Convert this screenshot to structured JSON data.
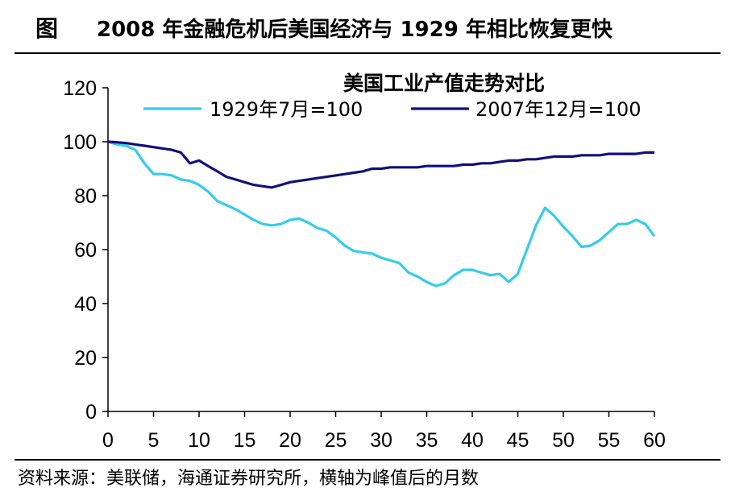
{
  "header": {
    "figure_label": "图",
    "title": "2008 年金融危机后美国经济与 1929 年相比恢复更快"
  },
  "source": "资料来源：美联储，海通证券研究所，横轴为峰值后的月数",
  "colors": {
    "series_1929": "#33ccee",
    "series_2007": "#10107a",
    "axis": "#000000"
  },
  "chart_data": {
    "type": "line",
    "title": "美国工业产值走势对比",
    "xlabel": "",
    "ylabel": "",
    "xlim": [
      0,
      60
    ],
    "ylim": [
      0,
      120
    ],
    "xticks": [
      0,
      5,
      10,
      15,
      20,
      25,
      30,
      35,
      40,
      45,
      50,
      55,
      60
    ],
    "yticks": [
      0,
      20,
      40,
      60,
      80,
      100,
      120
    ],
    "legend_position": "top",
    "grid": false,
    "series": [
      {
        "name": "1929年7月=100",
        "color": "#33ccee",
        "x": [
          0,
          1,
          2,
          3,
          4,
          5,
          6,
          7,
          8,
          9,
          10,
          11,
          12,
          13,
          14,
          15,
          16,
          17,
          18,
          19,
          20,
          21,
          22,
          23,
          24,
          25,
          26,
          27,
          28,
          29,
          30,
          31,
          32,
          33,
          34,
          35,
          36,
          37,
          38,
          39,
          40,
          41,
          42,
          43,
          44,
          45,
          46,
          47,
          48,
          49,
          50,
          51,
          52,
          53,
          54,
          55,
          56,
          57,
          58,
          59,
          60
        ],
        "values": [
          100,
          99,
          98.5,
          97,
          92,
          88,
          88,
          87.5,
          86,
          85.5,
          84,
          81.5,
          78,
          76.5,
          75,
          73,
          71,
          69.5,
          69,
          69.5,
          71,
          71.5,
          70,
          68,
          67,
          64.5,
          61.5,
          59.5,
          59,
          58.5,
          57,
          56,
          55,
          51.5,
          50,
          48,
          46.5,
          47.5,
          50.5,
          52.5,
          52.5,
          51.5,
          50.5,
          51,
          48,
          51,
          60,
          69,
          75.5,
          72.5,
          68.5,
          65,
          61,
          61.5,
          63.5,
          66.5,
          69.5,
          69.5,
          71,
          69.5,
          65
        ]
      },
      {
        "name": "2007年12月=100",
        "color": "#10107a",
        "x": [
          0,
          1,
          2,
          3,
          4,
          5,
          6,
          7,
          8,
          9,
          10,
          11,
          12,
          13,
          14,
          15,
          16,
          17,
          18,
          19,
          20,
          21,
          22,
          23,
          24,
          25,
          26,
          27,
          28,
          29,
          30,
          31,
          32,
          33,
          34,
          35,
          36,
          37,
          38,
          39,
          40,
          41,
          42,
          43,
          44,
          45,
          46,
          47,
          48,
          49,
          50,
          51,
          52,
          53,
          54,
          55,
          56,
          57,
          58,
          59,
          60
        ],
        "values": [
          100,
          99.8,
          99.5,
          99,
          98.5,
          98,
          97.5,
          97,
          96,
          92,
          93,
          91,
          89,
          87,
          86,
          85,
          84,
          83.5,
          83,
          84,
          85,
          85.5,
          86,
          86.5,
          87,
          87.5,
          88,
          88.5,
          89,
          90,
          90,
          90.5,
          90.5,
          90.5,
          90.5,
          91,
          91,
          91,
          91,
          91.5,
          91.5,
          92,
          92,
          92.5,
          93,
          93,
          93.5,
          93.5,
          94,
          94.5,
          94.5,
          94.5,
          95,
          95,
          95,
          95.5,
          95.5,
          95.5,
          95.5,
          96,
          96
        ]
      }
    ]
  }
}
